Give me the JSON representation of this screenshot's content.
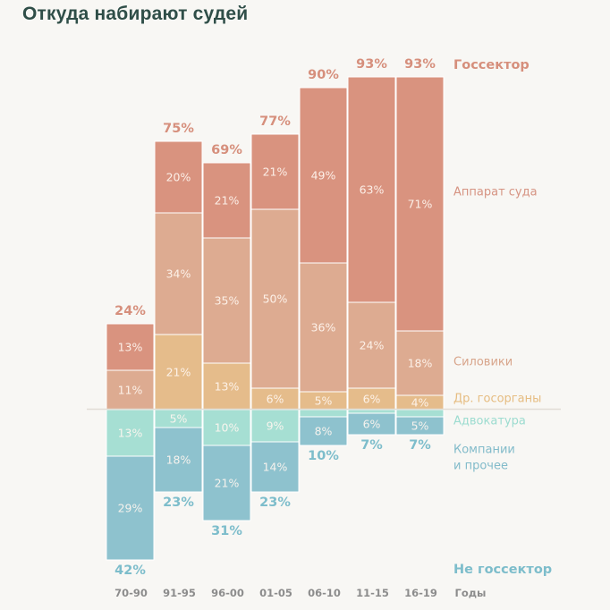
{
  "chart_data": {
    "type": "bar",
    "stacked": true,
    "diverging": true,
    "title": "Откуда набирают судей",
    "xlabel": "Годы",
    "ylabel": "",
    "unit": "%",
    "categories": [
      "70-90",
      "91-95",
      "96-00",
      "01-05",
      "06-10",
      "11-15",
      "16-19"
    ],
    "groups": {
      "gov": {
        "label": "Госсектор",
        "color": "#D68F7C",
        "totals": [
          24,
          75,
          69,
          77,
          90,
          93,
          93
        ]
      },
      "nongov": {
        "label": "Не госсектор",
        "color": "#7DBDCB",
        "totals": [
          42,
          23,
          31,
          23,
          10,
          7,
          7
        ]
      }
    },
    "series": [
      {
        "name": "Аппарат суда",
        "group": "gov",
        "color": "#D9937F",
        "label_color": "#D69483",
        "values": [
          13,
          20,
          21,
          21,
          49,
          63,
          71
        ]
      },
      {
        "name": "Силовики",
        "group": "gov",
        "color": "#DDAB91",
        "label_color": "#D8A58B",
        "values": [
          11,
          34,
          35,
          50,
          36,
          24,
          18
        ]
      },
      {
        "name": "Др. госорганы",
        "group": "gov",
        "color": "#E5BC8B",
        "label_color": "#E6BD82",
        "values": [
          0,
          21,
          13,
          6,
          5,
          6,
          4
        ]
      },
      {
        "name": "Адвокатура",
        "group": "nongov",
        "color": "#A6DFD3",
        "label_color": "#9DDCD0",
        "values": [
          13,
          5,
          10,
          9,
          2,
          1,
          2
        ]
      },
      {
        "name": "Компании",
        "name_line2": "и прочее",
        "group": "nongov",
        "color": "#8EC2CE",
        "label_color": "#82BBCA",
        "values": [
          29,
          18,
          21,
          14,
          8,
          6,
          5
        ]
      }
    ],
    "axis_line": "baseline between Госсектор (up) and Не госсектор (down)",
    "grid": false,
    "legend": "right"
  }
}
